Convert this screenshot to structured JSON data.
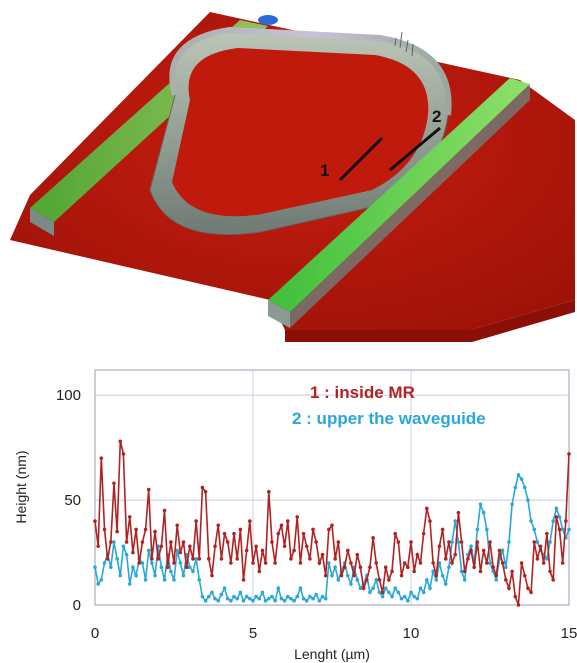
{
  "figure": {
    "afm_labels": [
      "1",
      "2"
    ]
  },
  "colors": {
    "series_1": "#b22222",
    "series_2": "#2aa8d8",
    "substrate": "#c41a0c",
    "grid": "#c8cce0"
  },
  "chart_data": {
    "type": "line",
    "title": "",
    "xlabel": "Lenght (µm)",
    "ylabel": "Height (nm)",
    "xlim": [
      0,
      15
    ],
    "ylim": [
      0,
      112
    ],
    "xticks": [
      0,
      5,
      10,
      15
    ],
    "yticks": [
      0,
      50,
      100
    ],
    "grid": true,
    "legend": "top-right",
    "legend_entries": [
      "1 : inside MR",
      "2 : upper the waveguide"
    ],
    "series": [
      {
        "name": "1 : inside MR",
        "x": [
          0.0,
          0.1,
          0.2,
          0.3,
          0.4,
          0.5,
          0.6,
          0.7,
          0.8,
          0.9,
          1.0,
          1.1,
          1.2,
          1.3,
          1.4,
          1.5,
          1.6,
          1.7,
          1.8,
          1.9,
          2.0,
          2.1,
          2.2,
          2.3,
          2.4,
          2.5,
          2.6,
          2.7,
          2.8,
          2.9,
          3.0,
          3.1,
          3.2,
          3.3,
          3.4,
          3.5,
          3.6,
          3.7,
          3.8,
          3.9,
          4.0,
          4.1,
          4.2,
          4.3,
          4.4,
          4.5,
          4.6,
          4.7,
          4.8,
          4.9,
          5.0,
          5.1,
          5.2,
          5.3,
          5.4,
          5.5,
          5.6,
          5.7,
          5.8,
          5.9,
          6.0,
          6.1,
          6.2,
          6.3,
          6.4,
          6.5,
          6.6,
          6.7,
          6.8,
          6.9,
          7.0,
          7.1,
          7.2,
          7.3,
          7.4,
          7.5,
          7.6,
          7.7,
          7.8,
          7.9,
          8.0,
          8.1,
          8.2,
          8.3,
          8.4,
          8.5,
          8.6,
          8.7,
          8.8,
          8.9,
          9.0,
          9.1,
          9.2,
          9.3,
          9.4,
          9.5,
          9.6,
          9.7,
          9.8,
          9.9,
          10.0,
          10.1,
          10.2,
          10.3,
          10.4,
          10.5,
          10.6,
          10.7,
          10.8,
          10.9,
          11.0,
          11.1,
          11.2,
          11.3,
          11.4,
          11.5,
          11.6,
          11.7,
          11.8,
          11.9,
          12.0,
          12.1,
          12.2,
          12.3,
          12.4,
          12.5,
          12.6,
          12.7,
          12.8,
          12.9,
          13.0,
          13.1,
          13.2,
          13.3,
          13.4,
          13.5,
          13.6,
          13.7,
          13.8,
          13.9,
          14.0,
          14.1,
          14.2,
          14.3,
          14.4,
          14.5,
          14.6,
          14.7,
          14.8,
          14.9,
          15.0
        ],
        "values": [
          40,
          28,
          70,
          36,
          22,
          30,
          58,
          35,
          78,
          72,
          30,
          42,
          25,
          36,
          20,
          30,
          36,
          55,
          22,
          35,
          22,
          28,
          45,
          18,
          30,
          20,
          38,
          25,
          30,
          18,
          28,
          22,
          40,
          22,
          56,
          54,
          22,
          14,
          28,
          38,
          22,
          34,
          30,
          20,
          34,
          22,
          36,
          12,
          26,
          40,
          20,
          28,
          16,
          26,
          20,
          54,
          30,
          20,
          34,
          38,
          28,
          40,
          22,
          26,
          42,
          20,
          34,
          28,
          22,
          36,
          30,
          20,
          24,
          14,
          36,
          38,
          22,
          30,
          14,
          18,
          26,
          20,
          14,
          24,
          18,
          8,
          12,
          18,
          32,
          20,
          12,
          6,
          18,
          12,
          16,
          34,
          30,
          14,
          20,
          18,
          30,
          16,
          24,
          20,
          34,
          46,
          40,
          20,
          14,
          28,
          36,
          22,
          30,
          20,
          24,
          44,
          30,
          16,
          22,
          26,
          18,
          30,
          16,
          26,
          20,
          30,
          18,
          14,
          26,
          20,
          12,
          8,
          16,
          4,
          0,
          20,
          14,
          8,
          6,
          30,
          22,
          28,
          20,
          34,
          16,
          12,
          42,
          36,
          20,
          40,
          72
        ]
      },
      {
        "name": "2 : upper the waveguide",
        "x": [
          0.0,
          0.1,
          0.2,
          0.3,
          0.4,
          0.5,
          0.6,
          0.7,
          0.8,
          0.9,
          1.0,
          1.1,
          1.2,
          1.3,
          1.4,
          1.5,
          1.6,
          1.7,
          1.8,
          1.9,
          2.0,
          2.1,
          2.2,
          2.3,
          2.4,
          2.5,
          2.6,
          2.7,
          2.8,
          2.9,
          3.0,
          3.1,
          3.2,
          3.3,
          3.4,
          3.5,
          3.6,
          3.7,
          3.8,
          3.9,
          4.0,
          4.1,
          4.2,
          4.3,
          4.4,
          4.5,
          4.6,
          4.7,
          4.8,
          4.9,
          5.0,
          5.1,
          5.2,
          5.3,
          5.4,
          5.5,
          5.6,
          5.7,
          5.8,
          5.9,
          6.0,
          6.1,
          6.2,
          6.3,
          6.4,
          6.5,
          6.6,
          6.7,
          6.8,
          6.9,
          7.0,
          7.1,
          7.2,
          7.3,
          7.4,
          7.5,
          7.6,
          7.7,
          7.8,
          7.9,
          8.0,
          8.1,
          8.2,
          8.3,
          8.4,
          8.5,
          8.6,
          8.7,
          8.8,
          8.9,
          9.0,
          9.1,
          9.2,
          9.3,
          9.4,
          9.5,
          9.6,
          9.7,
          9.8,
          9.9,
          10.0,
          10.1,
          10.2,
          10.3,
          10.4,
          10.5,
          10.6,
          10.7,
          10.8,
          10.9,
          11.0,
          11.1,
          11.2,
          11.3,
          11.4,
          11.5,
          11.6,
          11.7,
          11.8,
          11.9,
          12.0,
          12.1,
          12.2,
          12.3,
          12.4,
          12.5,
          12.6,
          12.7,
          12.8,
          12.9,
          13.0,
          13.1,
          13.2,
          13.3,
          13.4,
          13.5,
          13.6,
          13.7,
          13.8,
          13.9,
          14.0,
          14.1,
          14.2,
          14.3,
          14.4,
          14.5,
          14.6,
          14.7,
          14.8,
          14.9,
          15.0
        ],
        "values": [
          18,
          10,
          12,
          20,
          24,
          18,
          30,
          22,
          14,
          28,
          24,
          10,
          18,
          14,
          22,
          20,
          12,
          26,
          20,
          14,
          28,
          18,
          12,
          24,
          16,
          12,
          26,
          20,
          14,
          24,
          18,
          16,
          22,
          12,
          4,
          2,
          4,
          6,
          3,
          2,
          5,
          8,
          3,
          2,
          4,
          3,
          6,
          2,
          4,
          3,
          2,
          4,
          3,
          6,
          2,
          3,
          4,
          2,
          8,
          3,
          2,
          4,
          3,
          2,
          4,
          8,
          3,
          2,
          4,
          3,
          5,
          2,
          4,
          3,
          20,
          14,
          18,
          12,
          16,
          20,
          14,
          10,
          18,
          12,
          8,
          10,
          14,
          6,
          8,
          12,
          6,
          4,
          8,
          6,
          4,
          8,
          6,
          3,
          4,
          2,
          6,
          4,
          3,
          8,
          6,
          12,
          8,
          16,
          12,
          20,
          14,
          10,
          18,
          30,
          40,
          30,
          16,
          12,
          24,
          28,
          20,
          36,
          48,
          44,
          36,
          20,
          16,
          12,
          22,
          26,
          18,
          30,
          48,
          56,
          62,
          60,
          56,
          50,
          40,
          36,
          30,
          26,
          24,
          22,
          30,
          40,
          46,
          42,
          36,
          32,
          36
        ]
      }
    ]
  }
}
